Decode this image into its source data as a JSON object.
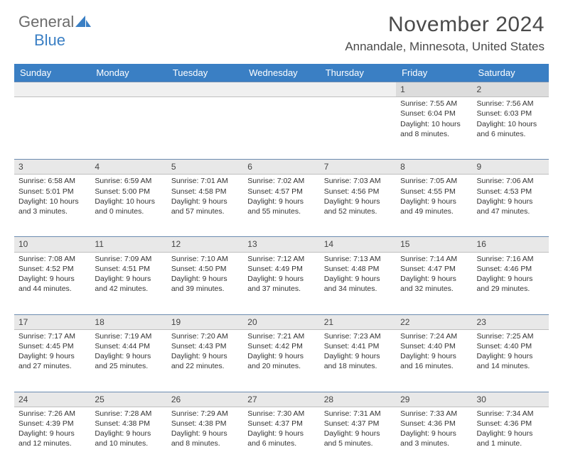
{
  "logo": {
    "text1": "General",
    "text2": "Blue"
  },
  "title": "November 2024",
  "location": "Annandale, Minnesota, United States",
  "header_color": "#3a7fc4",
  "dayheader_bg": "#e8e8e8",
  "weekdays": [
    "Sunday",
    "Monday",
    "Tuesday",
    "Wednesday",
    "Thursday",
    "Friday",
    "Saturday"
  ],
  "weeks": [
    [
      {
        "n": "",
        "t": ""
      },
      {
        "n": "",
        "t": ""
      },
      {
        "n": "",
        "t": ""
      },
      {
        "n": "",
        "t": ""
      },
      {
        "n": "",
        "t": ""
      },
      {
        "n": "1",
        "t": "Sunrise: 7:55 AM\nSunset: 6:04 PM\nDaylight: 10 hours and 8 minutes."
      },
      {
        "n": "2",
        "t": "Sunrise: 7:56 AM\nSunset: 6:03 PM\nDaylight: 10 hours and 6 minutes."
      }
    ],
    [
      {
        "n": "3",
        "t": "Sunrise: 6:58 AM\nSunset: 5:01 PM\nDaylight: 10 hours and 3 minutes."
      },
      {
        "n": "4",
        "t": "Sunrise: 6:59 AM\nSunset: 5:00 PM\nDaylight: 10 hours and 0 minutes."
      },
      {
        "n": "5",
        "t": "Sunrise: 7:01 AM\nSunset: 4:58 PM\nDaylight: 9 hours and 57 minutes."
      },
      {
        "n": "6",
        "t": "Sunrise: 7:02 AM\nSunset: 4:57 PM\nDaylight: 9 hours and 55 minutes."
      },
      {
        "n": "7",
        "t": "Sunrise: 7:03 AM\nSunset: 4:56 PM\nDaylight: 9 hours and 52 minutes."
      },
      {
        "n": "8",
        "t": "Sunrise: 7:05 AM\nSunset: 4:55 PM\nDaylight: 9 hours and 49 minutes."
      },
      {
        "n": "9",
        "t": "Sunrise: 7:06 AM\nSunset: 4:53 PM\nDaylight: 9 hours and 47 minutes."
      }
    ],
    [
      {
        "n": "10",
        "t": "Sunrise: 7:08 AM\nSunset: 4:52 PM\nDaylight: 9 hours and 44 minutes."
      },
      {
        "n": "11",
        "t": "Sunrise: 7:09 AM\nSunset: 4:51 PM\nDaylight: 9 hours and 42 minutes."
      },
      {
        "n": "12",
        "t": "Sunrise: 7:10 AM\nSunset: 4:50 PM\nDaylight: 9 hours and 39 minutes."
      },
      {
        "n": "13",
        "t": "Sunrise: 7:12 AM\nSunset: 4:49 PM\nDaylight: 9 hours and 37 minutes."
      },
      {
        "n": "14",
        "t": "Sunrise: 7:13 AM\nSunset: 4:48 PM\nDaylight: 9 hours and 34 minutes."
      },
      {
        "n": "15",
        "t": "Sunrise: 7:14 AM\nSunset: 4:47 PM\nDaylight: 9 hours and 32 minutes."
      },
      {
        "n": "16",
        "t": "Sunrise: 7:16 AM\nSunset: 4:46 PM\nDaylight: 9 hours and 29 minutes."
      }
    ],
    [
      {
        "n": "17",
        "t": "Sunrise: 7:17 AM\nSunset: 4:45 PM\nDaylight: 9 hours and 27 minutes."
      },
      {
        "n": "18",
        "t": "Sunrise: 7:19 AM\nSunset: 4:44 PM\nDaylight: 9 hours and 25 minutes."
      },
      {
        "n": "19",
        "t": "Sunrise: 7:20 AM\nSunset: 4:43 PM\nDaylight: 9 hours and 22 minutes."
      },
      {
        "n": "20",
        "t": "Sunrise: 7:21 AM\nSunset: 4:42 PM\nDaylight: 9 hours and 20 minutes."
      },
      {
        "n": "21",
        "t": "Sunrise: 7:23 AM\nSunset: 4:41 PM\nDaylight: 9 hours and 18 minutes."
      },
      {
        "n": "22",
        "t": "Sunrise: 7:24 AM\nSunset: 4:40 PM\nDaylight: 9 hours and 16 minutes."
      },
      {
        "n": "23",
        "t": "Sunrise: 7:25 AM\nSunset: 4:40 PM\nDaylight: 9 hours and 14 minutes."
      }
    ],
    [
      {
        "n": "24",
        "t": "Sunrise: 7:26 AM\nSunset: 4:39 PM\nDaylight: 9 hours and 12 minutes."
      },
      {
        "n": "25",
        "t": "Sunrise: 7:28 AM\nSunset: 4:38 PM\nDaylight: 9 hours and 10 minutes."
      },
      {
        "n": "26",
        "t": "Sunrise: 7:29 AM\nSunset: 4:38 PM\nDaylight: 9 hours and 8 minutes."
      },
      {
        "n": "27",
        "t": "Sunrise: 7:30 AM\nSunset: 4:37 PM\nDaylight: 9 hours and 6 minutes."
      },
      {
        "n": "28",
        "t": "Sunrise: 7:31 AM\nSunset: 4:37 PM\nDaylight: 9 hours and 5 minutes."
      },
      {
        "n": "29",
        "t": "Sunrise: 7:33 AM\nSunset: 4:36 PM\nDaylight: 9 hours and 3 minutes."
      },
      {
        "n": "30",
        "t": "Sunrise: 7:34 AM\nSunset: 4:36 PM\nDaylight: 9 hours and 1 minute."
      }
    ]
  ]
}
